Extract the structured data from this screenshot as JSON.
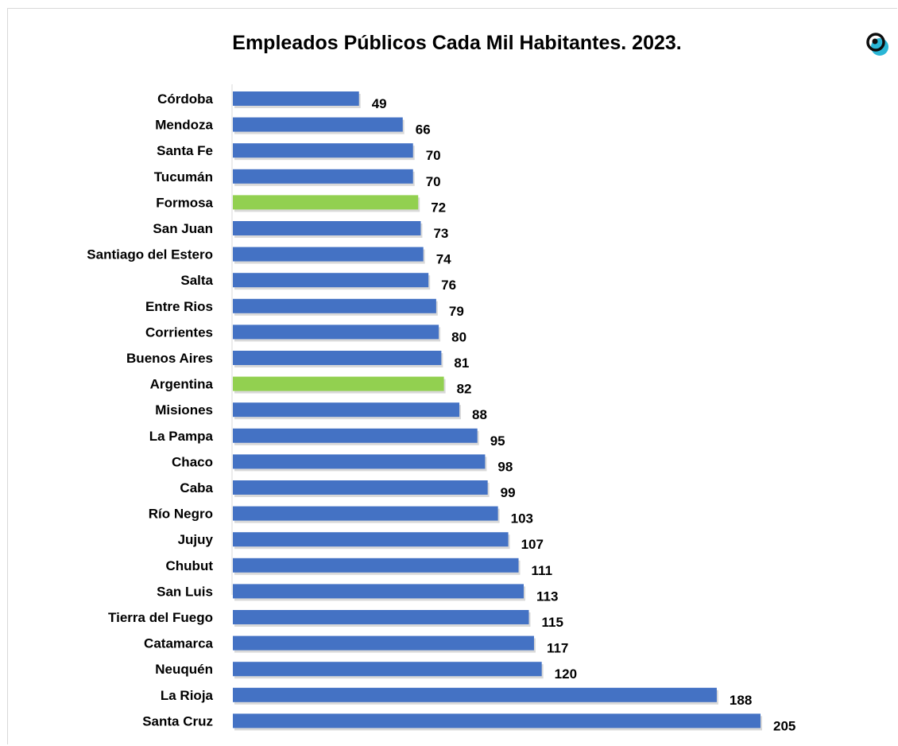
{
  "chart_data": {
    "type": "bar",
    "orientation": "horizontal",
    "title": "Empleados Públicos Cada Mil Habitantes. 2023.",
    "categories": [
      "Córdoba",
      "Mendoza",
      "Santa Fe",
      "Tucumán",
      "Formosa",
      "San Juan",
      "Santiago del Estero",
      "Salta",
      "Entre Rios",
      "Corrientes",
      "Buenos Aires",
      "Argentina",
      "Misiones",
      "La Pampa",
      "Chaco",
      "Caba",
      "Río Negro",
      "Jujuy",
      "Chubut",
      "San Luis",
      "Tierra del Fuego",
      "Catamarca",
      "Neuquén",
      "La Rioja",
      "Santa Cruz"
    ],
    "values": [
      49,
      66,
      70,
      70,
      72,
      73,
      74,
      76,
      79,
      80,
      81,
      82,
      88,
      95,
      98,
      99,
      103,
      107,
      111,
      113,
      115,
      117,
      120,
      188,
      205
    ],
    "highlighted": [
      "Formosa",
      "Argentina"
    ],
    "colors": {
      "default": "#4472c4",
      "highlight": "#92d050"
    },
    "xlim": [
      0,
      205
    ],
    "grid": false,
    "legend": "none"
  },
  "logo": {
    "icon": "target-logo-icon",
    "colors": {
      "ring": "#0d0d0d",
      "accent": "#2ab6d6"
    }
  }
}
